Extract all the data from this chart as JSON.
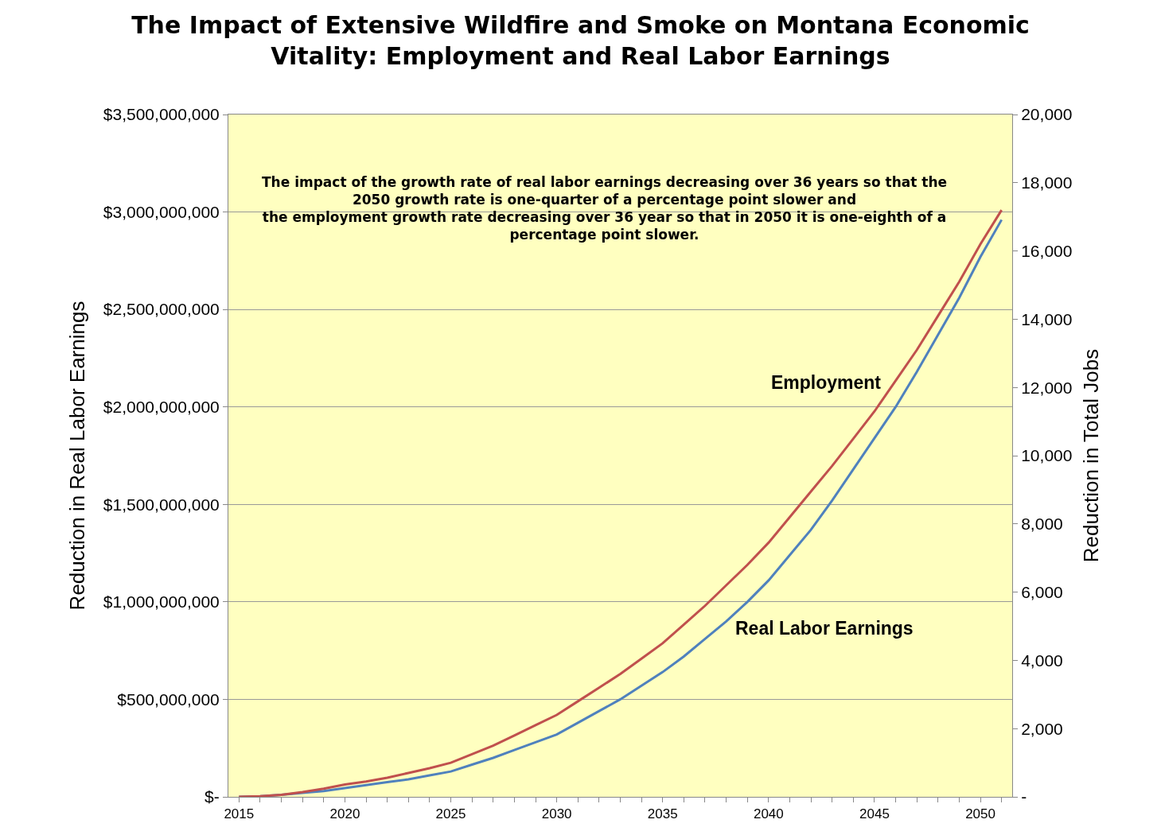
{
  "chart_data": {
    "type": "line",
    "title": "The Impact of Extensive Wildfire and Smoke on Montana Economic\nVitality: Employment and Real Labor Earnings",
    "ylabel": "Reduction in Real Labor Earnings",
    "y2label": "Reduction in Total Jobs",
    "annotations": [
      "The impact of the growth rate of real labor earnings decreasing over 36 years so that the\n2050 growth rate is one-quarter of a percentage point slower and\nthe employment growth rate decreasing over 36 year so that in 2050 it is one-eighth of a\npercentage point slower."
    ],
    "x": [
      2015,
      2016,
      2017,
      2018,
      2019,
      2020,
      2021,
      2022,
      2023,
      2024,
      2025,
      2026,
      2027,
      2028,
      2029,
      2030,
      2031,
      2032,
      2033,
      2034,
      2035,
      2036,
      2037,
      2038,
      2039,
      2040,
      2041,
      2042,
      2043,
      2044,
      2045,
      2046,
      2047,
      2048,
      2049,
      2050,
      2051
    ],
    "series": [
      {
        "name": "Employment",
        "color": "#c0504d",
        "axis": "y2",
        "values": [
          0,
          20,
          60,
          140,
          240,
          360,
          450,
          560,
          700,
          840,
          1000,
          1250,
          1500,
          1800,
          2100,
          2400,
          2800,
          3200,
          3600,
          4050,
          4500,
          5050,
          5600,
          6200,
          6800,
          7450,
          8200,
          8950,
          9700,
          10500,
          11300,
          12200,
          13100,
          14100,
          15100,
          16200,
          17200
        ]
      },
      {
        "name": "Real Labor Earnings",
        "color": "#4f81bd",
        "values": [
          0,
          3000000,
          10000000,
          20000000,
          30000000,
          45000000,
          60000000,
          75000000,
          90000000,
          110000000,
          130000000,
          165000000,
          200000000,
          240000000,
          280000000,
          320000000,
          380000000,
          440000000,
          500000000,
          570000000,
          640000000,
          720000000,
          810000000,
          900000000,
          1000000000,
          1110000000,
          1240000000,
          1370000000,
          1520000000,
          1680000000,
          1840000000,
          2000000000,
          2180000000,
          2370000000,
          2560000000,
          2770000000,
          2960000000
        ]
      }
    ],
    "xlim": [
      2014.5,
      2051.5
    ],
    "xticks": [
      2015,
      {
        "value": 2016,
        "label": null
      },
      {
        "value": 2017,
        "label": null
      },
      {
        "value": 2018,
        "label": null
      },
      {
        "value": 2019,
        "label": null
      },
      2020,
      {
        "value": 2021,
        "label": null
      },
      {
        "value": 2022,
        "label": null
      },
      {
        "value": 2023,
        "label": null
      },
      {
        "value": 2024,
        "label": null
      },
      2025,
      {
        "value": 2026,
        "label": null
      },
      {
        "value": 2027,
        "label": null
      },
      {
        "value": 2028,
        "label": null
      },
      {
        "value": 2029,
        "label": null
      },
      2030,
      {
        "value": 2031,
        "label": null
      },
      {
        "value": 2032,
        "label": null
      },
      {
        "value": 2033,
        "label": null
      },
      {
        "value": 2034,
        "label": null
      },
      2035,
      {
        "value": 2036,
        "label": null
      },
      {
        "value": 2037,
        "label": null
      },
      {
        "value": 2038,
        "label": null
      },
      {
        "value": 2039,
        "label": null
      },
      2040,
      {
        "value": 2041,
        "label": null
      },
      {
        "value": 2042,
        "label": null
      },
      {
        "value": 2043,
        "label": null
      },
      {
        "value": 2044,
        "label": null
      },
      2045,
      {
        "value": 2046,
        "label": null
      },
      {
        "value": 2047,
        "label": null
      },
      {
        "value": 2048,
        "label": null
      },
      {
        "value": 2049,
        "label": null
      },
      2050,
      {
        "value": 2051,
        "label": null
      }
    ],
    "ylim": [
      0,
      3500000000
    ],
    "yticks": [
      {
        "value": 0,
        "label": "$-"
      },
      {
        "value": 500000000,
        "label": "$500,000,000"
      },
      {
        "value": 1000000000,
        "label": "$1,000,000,000"
      },
      {
        "value": 1500000000,
        "label": "$1,500,000,000"
      },
      {
        "value": 2000000000,
        "label": "$2,000,000,000"
      },
      {
        "value": 2500000000,
        "label": "$2,500,000,000"
      },
      {
        "value": 3000000000,
        "label": "$3,000,000,000"
      },
      {
        "value": 3500000000,
        "label": "$3,500,000,000"
      }
    ],
    "y2lim": [
      0,
      20000
    ],
    "y2ticks": [
      {
        "value": 0,
        "label": "-"
      },
      {
        "value": 2000,
        "label": "2,000"
      },
      {
        "value": 4000,
        "label": "4,000"
      },
      {
        "value": 6000,
        "label": "6,000"
      },
      {
        "value": 8000,
        "label": "8,000"
      },
      {
        "value": 10000,
        "label": "10,000"
      },
      {
        "value": 12000,
        "label": "12,000"
      },
      {
        "value": 14000,
        "label": "14,000"
      },
      {
        "value": 16000,
        "label": "16,000"
      },
      {
        "value": 18000,
        "label": "18,000"
      },
      {
        "value": 20000,
        "label": "20,000"
      }
    ],
    "grid": "y",
    "legend": false,
    "marker": "none",
    "line_style": "solid"
  }
}
